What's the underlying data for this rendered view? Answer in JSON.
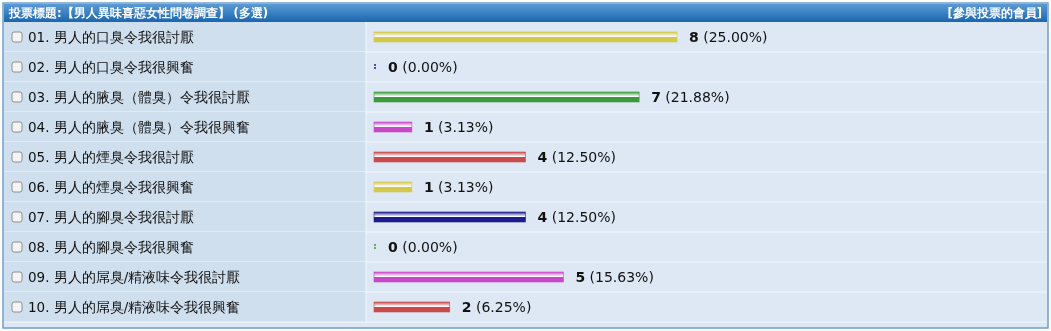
{
  "chart_data": {
    "type": "bar",
    "orientation": "horizontal",
    "title": "投票標題:【男人異味喜惡女性問卷調查】 (多選)",
    "annotations": [
      "[參與投票的會員]"
    ],
    "categories": [
      "01. 男人的口臭令我很討厭",
      "02. 男人的口臭令我很興奮",
      "03. 男人的腋臭（體臭）令我很討厭",
      "04. 男人的腋臭（體臭）令我很興奮",
      "05. 男人的煙臭令我很討厭",
      "06. 男人的煙臭令我很興奮",
      "07. 男人的腳臭令我很討厭",
      "08. 男人的腳臭令我很興奮",
      "09. 男人的屌臭/精液味令我很討厭",
      "10. 男人的屌臭/精液味令我很興奮"
    ],
    "values": [
      8,
      0,
      7,
      1,
      4,
      1,
      4,
      0,
      5,
      2
    ],
    "colors": [
      "#d4c84a",
      "#1c1c8c",
      "#3c9a3c",
      "#c848c8",
      "#c84a4a",
      "#d4c84a",
      "#1c1c8c",
      "#3c9a3c",
      "#c848c8",
      "#c84a4a"
    ],
    "value_labels": [
      "8 (25.00%)",
      "0 (0.00%)",
      "7 (21.88%)",
      "1 (3.13%)",
      "4 (12.50%)",
      "1 (3.13%)",
      "4 (12.50%)",
      "0 (0.00%)",
      "5 (15.63%)",
      "2 (6.25%)"
    ],
    "data_labels": false
  }
}
